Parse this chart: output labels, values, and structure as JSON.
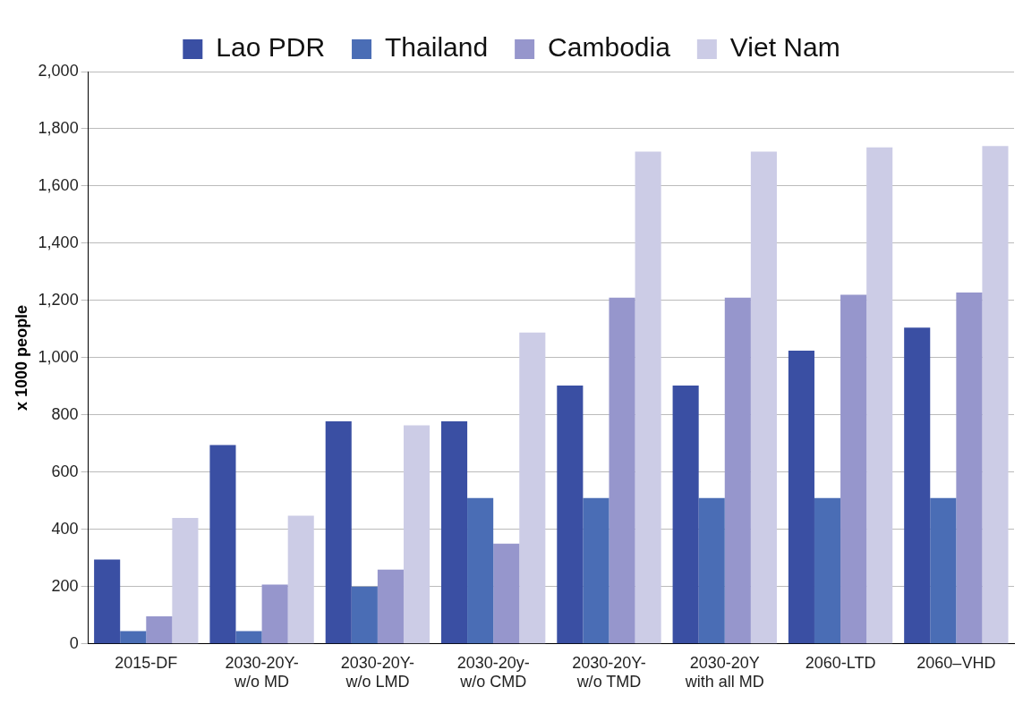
{
  "chart_data": {
    "type": "bar",
    "ylabel": "x 1000 people",
    "categories": [
      "2015-DF",
      "2030-20Y-\nw/o MD",
      "2030-20Y-\nw/o LMD",
      "2030-20y-\nw/o CMD",
      "2030-20Y-\nw/o TMD",
      "2030-20Y\nwith all MD",
      "2060-LTD",
      "2060–VHD"
    ],
    "series": [
      {
        "name": "Lao PDR",
        "color": "#3a4fa3",
        "values": [
          295,
          695,
          778,
          778,
          903,
          903,
          1025,
          1105
        ]
      },
      {
        "name": "Thailand",
        "color": "#4a6db5",
        "values": [
          45,
          45,
          200,
          510,
          510,
          510,
          510,
          510
        ]
      },
      {
        "name": "Cambodia",
        "color": "#9696cc",
        "values": [
          96,
          207,
          260,
          350,
          1210,
          1210,
          1220,
          1228
        ]
      },
      {
        "name": "Viet Nam",
        "color": "#cccce6",
        "values": [
          440,
          448,
          764,
          1088,
          1720,
          1720,
          1735,
          1740
        ]
      }
    ],
    "ylim": [
      0,
      2000
    ],
    "yticks": [
      0,
      200,
      400,
      600,
      800,
      {
        "value": 1000,
        "label": "1,000"
      },
      {
        "value": 1200,
        "label": "1,200"
      },
      {
        "value": 1400,
        "label": "1,400"
      },
      {
        "value": 1600,
        "label": "1,600"
      },
      {
        "value": 1800,
        "label": "1,800"
      },
      {
        "value": 2000,
        "label": "2,000"
      }
    ],
    "grid": "y",
    "legend": "top"
  }
}
